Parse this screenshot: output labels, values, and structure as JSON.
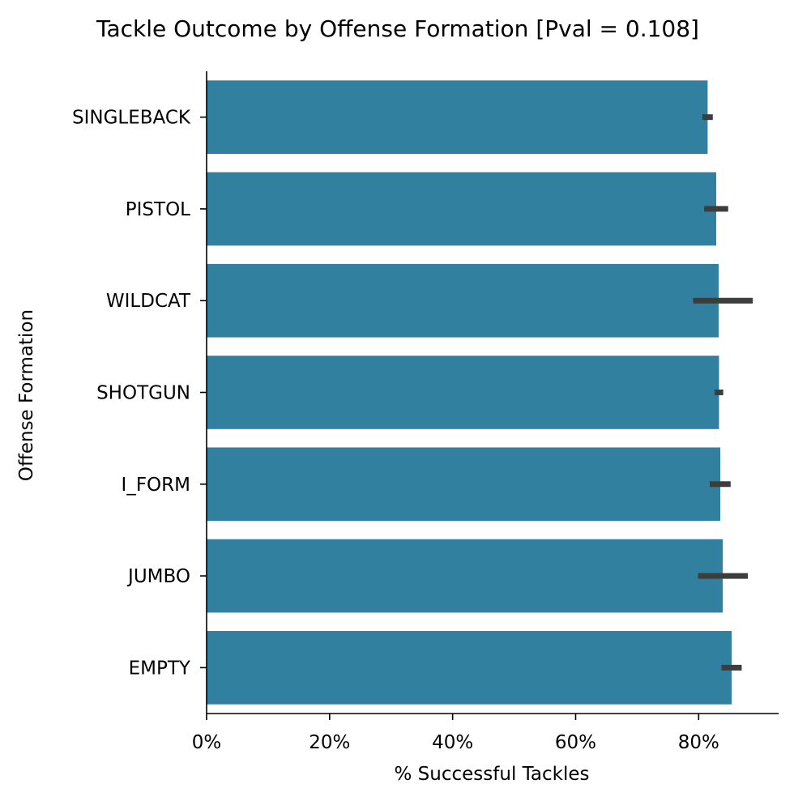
{
  "chart_data": {
    "type": "bar",
    "orientation": "horizontal",
    "title": "Tackle Outcome by Offense Formation [Pval = 0.108]",
    "xlabel": "% Successful Tackles",
    "ylabel": "Offense Formation",
    "xlim": [
      0,
      0.93
    ],
    "x_ticks": [
      0,
      0.2,
      0.4,
      0.6,
      0.8
    ],
    "x_tick_labels": [
      "0%",
      "20%",
      "40%",
      "60%",
      "80%"
    ],
    "categories": [
      "SINGLEBACK",
      "PISTOL",
      "WILDCAT",
      "SHOTGUN",
      "I_FORM",
      "JUMBO",
      "EMPTY"
    ],
    "values": [
      0.8146,
      0.8286,
      0.8325,
      0.8331,
      0.8352,
      0.8392,
      0.8537
    ],
    "error_low": [
      0.806,
      0.809,
      0.791,
      0.826,
      0.818,
      0.799,
      0.837
    ],
    "error_high": [
      0.823,
      0.848,
      0.888,
      0.84,
      0.852,
      0.88,
      0.87
    ],
    "grid": false,
    "legend": "none",
    "colors": {
      "bar": "#3180a0",
      "error_bar": "#3d3d3d",
      "axis": "#000000"
    }
  }
}
